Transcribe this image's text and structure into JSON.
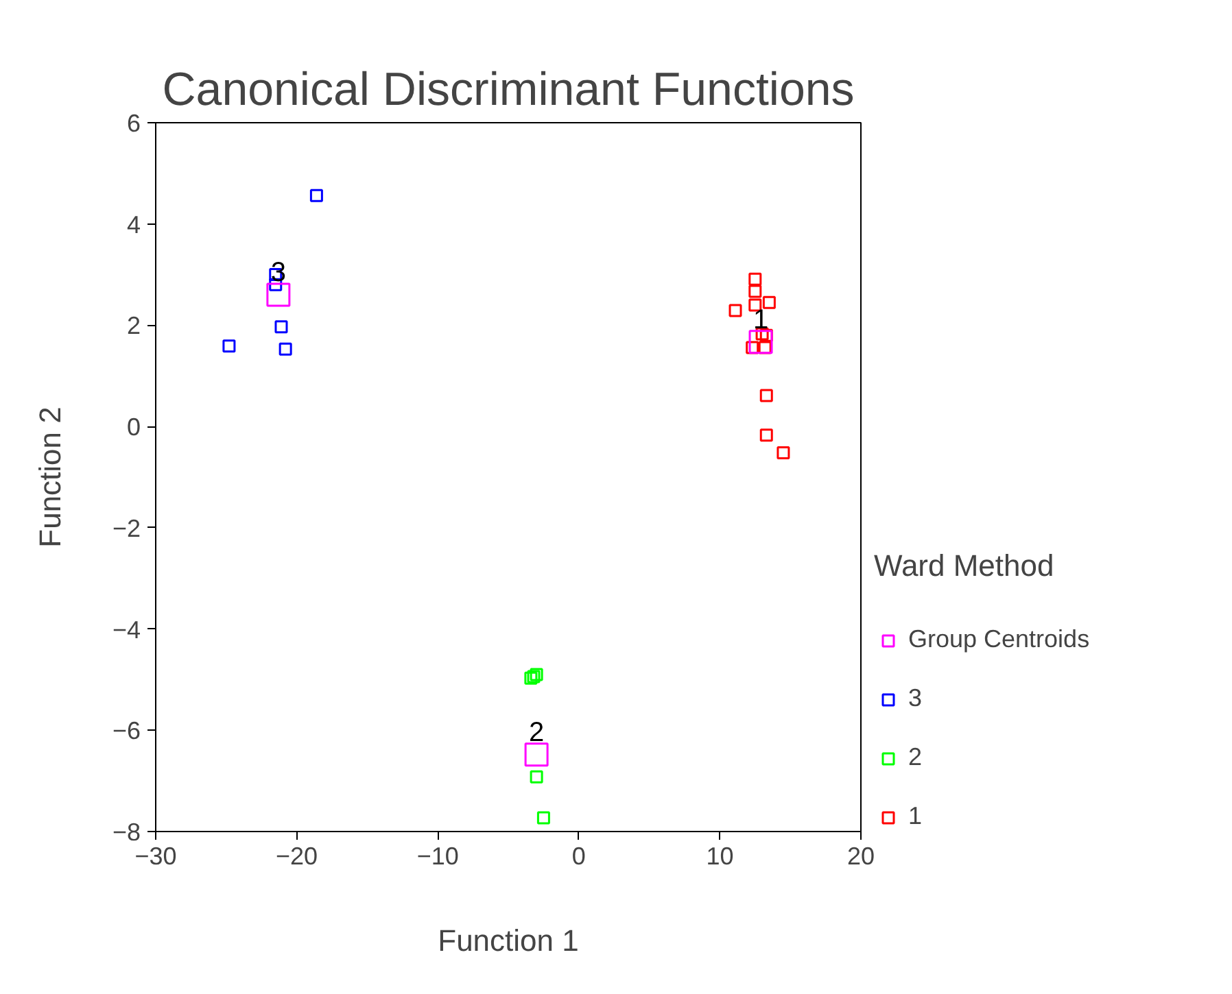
{
  "chart_data": {
    "type": "scatter",
    "title": "Canonical Discriminant Functions",
    "xlabel": "Function 1",
    "ylabel": "Function 2",
    "legend_title": "Ward Method",
    "legend": "right",
    "marker": "square",
    "grid": false,
    "xlim": [
      -30,
      20
    ],
    "xticks": [
      -30,
      -20,
      -10,
      0,
      10,
      20
    ],
    "ylim": [
      -8,
      6
    ],
    "yticks": [
      -8,
      -6,
      -4,
      -2,
      0,
      2,
      4,
      6
    ],
    "series": [
      {
        "name": "Group Centroids",
        "color": "#ff00ff",
        "x": [
          -21.3,
          -3.0,
          12.9
        ],
        "values": [
          2.6,
          -6.48,
          1.67
        ]
      },
      {
        "name": "3",
        "color": "#0000ff",
        "x": [
          -18.6,
          -21.5,
          -21.5,
          -21.1,
          -24.8,
          -20.8
        ],
        "values": [
          4.56,
          3.0,
          2.8,
          1.97,
          1.59,
          1.53
        ]
      },
      {
        "name": "2",
        "color": "#00ff00",
        "x": [
          -3.4,
          -3.2,
          -3.0,
          -3.0,
          -2.5
        ],
        "values": [
          -4.97,
          -4.94,
          -4.9,
          -6.92,
          -7.73
        ]
      },
      {
        "name": "1",
        "color": "#ff0000",
        "x": [
          12.5,
          12.5,
          12.5,
          13.5,
          11.1,
          13.0,
          13.3,
          12.3,
          13.2,
          13.3,
          13.3,
          14.5
        ],
        "values": [
          2.91,
          2.67,
          2.4,
          2.45,
          2.29,
          1.83,
          1.8,
          1.56,
          1.56,
          0.61,
          -0.17,
          -0.52
        ]
      }
    ],
    "annotations": [
      "3",
      "2",
      "1"
    ]
  }
}
